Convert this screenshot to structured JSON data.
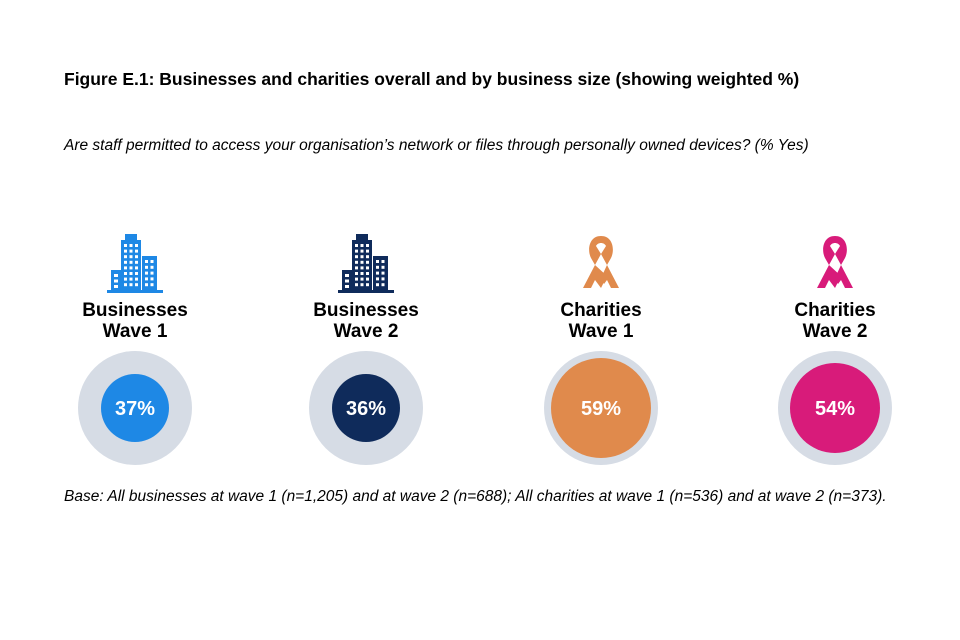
{
  "figure": {
    "title": "Figure E.1: Businesses and charities overall and by business size (showing weighted %)",
    "question": "Are staff permitted to access your organisation’s network or files through personally owned devices? (% Yes)",
    "base_note": "Base: All businesses at wave 1 (n=1,205) and at wave 2 (n=688); All charities at wave 1 (n=536) and at wave 2 (n=373)."
  },
  "colors": {
    "ring": "#D6DCE5",
    "businesses_wave_1": "#1E88E5",
    "businesses_wave_2": "#0F2B5B",
    "charities_wave_1": "#E08A4C",
    "charities_wave_2": "#D81B7A"
  },
  "chart_data": {
    "type": "donut-indicator",
    "title": "Figure E.1: Businesses and charities overall and by business size (showing weighted %)",
    "subtitle": "Are staff permitted to access your organisation’s network or files through personally owned devices? (% Yes)",
    "unit": "%",
    "items": [
      {
        "group": "Businesses",
        "wave": "Wave 1",
        "value": 37,
        "label": "37%",
        "icon": "office-building-icon",
        "color": "#1E88E5"
      },
      {
        "group": "Businesses",
        "wave": "Wave 2",
        "value": 36,
        "label": "36%",
        "icon": "office-building-icon",
        "color": "#0F2B5B"
      },
      {
        "group": "Charities",
        "wave": "Wave 1",
        "value": 59,
        "label": "59%",
        "icon": "awareness-ribbon-icon",
        "color": "#E08A4C"
      },
      {
        "group": "Charities",
        "wave": "Wave 2",
        "value": 54,
        "label": "54%",
        "icon": "awareness-ribbon-icon",
        "color": "#D81B7A"
      }
    ]
  }
}
